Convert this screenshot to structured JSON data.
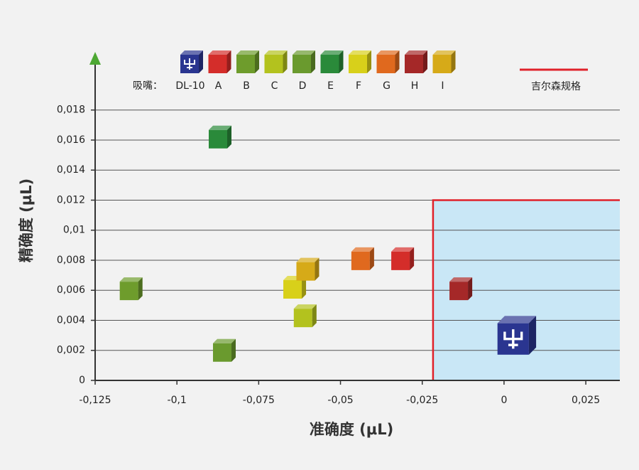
{
  "chart_data": {
    "type": "scatter",
    "x_label": "准确度 (µL)",
    "y_label": "精确度 (µL)",
    "legend_title": "吸嘴：",
    "xlim": [
      -0.125,
      0.0354
    ],
    "ylim": [
      0,
      0.0213
    ],
    "xticks": [
      {
        "value": -0.125,
        "label": "-0,125"
      },
      {
        "value": -0.1,
        "label": "-0,1"
      },
      {
        "value": -0.075,
        "label": "-0,075"
      },
      {
        "value": -0.05,
        "label": "-0,05"
      },
      {
        "value": -0.025,
        "label": "-0,025"
      },
      0,
      {
        "value": 0.025,
        "label": "0,025"
      }
    ],
    "yticks": [
      0,
      {
        "value": 0.002,
        "label": "0,002"
      },
      {
        "value": 0.004,
        "label": "0,004"
      },
      {
        "value": 0.006,
        "label": "0,006"
      },
      {
        "value": 0.008,
        "label": "0,008"
      },
      {
        "value": 0.01,
        "label": "0,01"
      },
      {
        "value": 0.012,
        "label": "0,012"
      },
      {
        "value": 0.014,
        "label": "0,014"
      },
      {
        "value": 0.016,
        "label": "0,016"
      },
      {
        "value": 0.018,
        "label": "0,018"
      }
    ],
    "grid": true,
    "spec_region": {
      "name": "吉尔森规格",
      "color": "#e0212a",
      "fill": "#c9e7f6",
      "xmin": -0.0217,
      "ymax": 0.012
    },
    "series": [
      {
        "name": "DL-10",
        "color": "#2a3590",
        "x": [
          0.0039
        ],
        "y": [
          0.003
        ]
      },
      {
        "name": "A",
        "color": "#d42d2a",
        "x": [
          -0.031
        ],
        "y": [
          0.0081
        ]
      },
      {
        "name": "B",
        "color": "#6e9c2c",
        "x": [
          -0.114
        ],
        "y": [
          0.0061
        ]
      },
      {
        "name": "C",
        "color": "#b3c21e",
        "x": [
          -0.0608
        ],
        "y": [
          0.0043
        ]
      },
      {
        "name": "D",
        "color": "#6a9a2e",
        "x": [
          -0.0855
        ],
        "y": [
          0.002
        ]
      },
      {
        "name": "E",
        "color": "#2a8a3a",
        "x": [
          -0.0868
        ],
        "y": [
          0.0162
        ]
      },
      {
        "name": "F",
        "color": "#d8d01a",
        "x": [
          -0.064
        ],
        "y": [
          0.0062
        ]
      },
      {
        "name": "G",
        "color": "#e0691e",
        "x": [
          -0.0432
        ],
        "y": [
          0.0081
        ]
      },
      {
        "name": "H",
        "color": "#a52828",
        "x": [
          -0.0132
        ],
        "y": [
          0.0061
        ]
      },
      {
        "name": "I",
        "color": "#d6aa18",
        "x": [
          -0.06
        ],
        "y": [
          0.0074
        ]
      }
    ]
  }
}
